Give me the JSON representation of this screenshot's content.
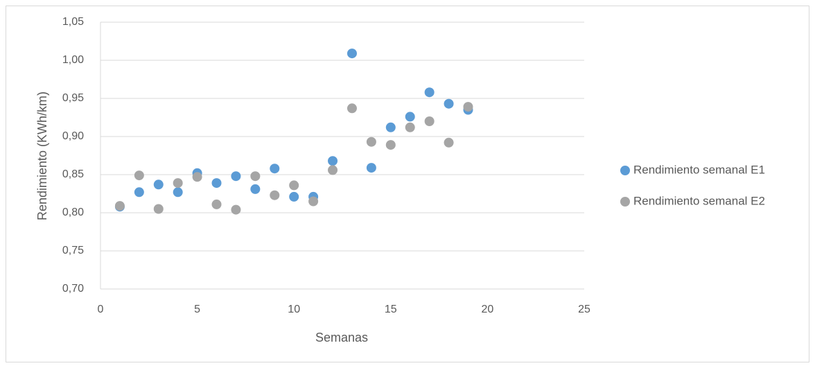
{
  "chart_data": {
    "type": "scatter",
    "x_label": "Semanas",
    "y_label": "Rendimiento (KWh/km)",
    "x": [
      1,
      2,
      3,
      4,
      5,
      6,
      7,
      8,
      9,
      10,
      11,
      12,
      13,
      14,
      15,
      16,
      17,
      18,
      19
    ],
    "series": [
      {
        "name": "Rendimiento semanal E1",
        "color": "#5b9bd5",
        "values": [
          0.808,
          0.827,
          0.837,
          0.827,
          0.852,
          0.839,
          0.848,
          0.831,
          0.858,
          0.821,
          0.821,
          0.868,
          1.009,
          0.859,
          0.912,
          0.926,
          0.958,
          0.943,
          0.935
        ]
      },
      {
        "name": "Rendimiento semanal E2",
        "color": "#a5a5a5",
        "values": [
          0.809,
          0.849,
          0.805,
          0.839,
          0.847,
          0.811,
          0.804,
          0.848,
          0.823,
          0.836,
          0.815,
          0.856,
          0.937,
          0.893,
          0.889,
          0.912,
          0.92,
          0.892,
          0.939
        ]
      }
    ],
    "xlim": [
      0,
      25
    ],
    "xticks": [
      0,
      5,
      10,
      15,
      20,
      25
    ],
    "ylim": [
      0.7,
      1.05
    ],
    "yticks": [
      {
        "value": 0.7,
        "label": "0,70"
      },
      {
        "value": 0.75,
        "label": "0,75"
      },
      {
        "value": 0.8,
        "label": "0,80"
      },
      {
        "value": 0.85,
        "label": "0,85"
      },
      {
        "value": 0.9,
        "label": "0,90"
      },
      {
        "value": 0.95,
        "label": "0,95"
      },
      {
        "value": 1.0,
        "label": "1,00"
      },
      {
        "value": 1.05,
        "label": "1,05"
      }
    ],
    "grid": true,
    "legend": "right"
  }
}
